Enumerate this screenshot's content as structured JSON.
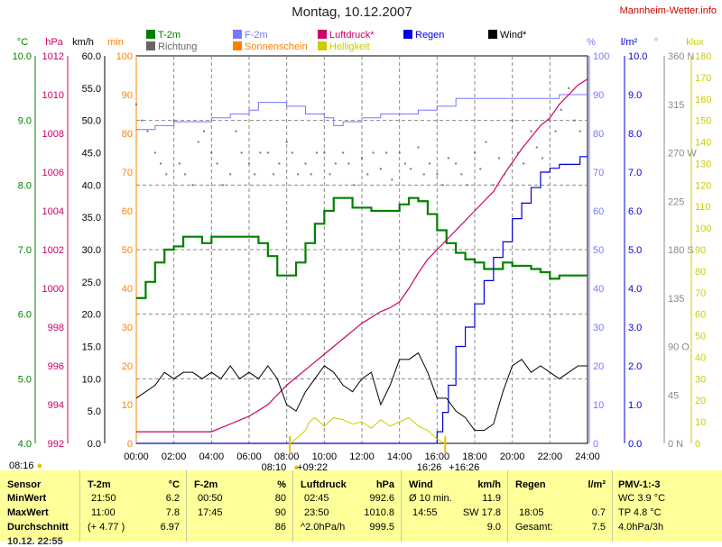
{
  "header": {
    "title": "Montag, 10.12.2007",
    "site": "Mannheim-Wetter.info"
  },
  "units": {
    "temp": "°C",
    "press": "hPa",
    "wind": "km/h",
    "sun": "min",
    "hum": "%",
    "rain": "l/m²",
    "dir": "°",
    "lux": "klux"
  },
  "legend": {
    "t2m": "T-2m",
    "richtung": "Richtung",
    "f2m": "F-2m",
    "sonnenschein": "Sonnenschein",
    "luftdruck": "Luftdruck*",
    "helligkeit": "Helligkeit",
    "regen": "Regen",
    "wind": "Wind*"
  },
  "colors": {
    "temp": "#008000",
    "press": "#cc0066",
    "humidity": "#7777ff",
    "rain": "#0000dd",
    "wind": "#000000",
    "sun": "#ff8000",
    "lux": "#cccc00",
    "richtung": "#777777",
    "panel": "#ffff99"
  },
  "events": {
    "sunrise": "08:16",
    "label_a": "08:10",
    "label_b": "09:22",
    "label_c": "16:26",
    "label_d": "16:26"
  },
  "chart_data": {
    "type": "line",
    "x_ticks": [
      "00:00",
      "02:00",
      "04:00",
      "06:00",
      "08:00",
      "10:00",
      "12:00",
      "14:00",
      "16:00",
      "18:00",
      "20:00",
      "22:00",
      "24:00"
    ],
    "axes": {
      "temp_c": {
        "range": [
          4.0,
          10.0
        ],
        "ticks": [
          "4.0",
          "5.0",
          "6.0",
          "7.0",
          "8.0",
          "9.0",
          "10.0"
        ]
      },
      "pressure_hpa": {
        "range": [
          992,
          1012
        ],
        "ticks": [
          "992",
          "994",
          "996",
          "998",
          "1000",
          "1002",
          "1004",
          "1006",
          "1008",
          "1010",
          "1012"
        ]
      },
      "wind_kmh": {
        "range": [
          0,
          60
        ],
        "ticks": [
          "0.0",
          "5.0",
          "10.0",
          "15.0",
          "20.0",
          "25.0",
          "30.0",
          "35.0",
          "40.0",
          "45.0",
          "50.0",
          "55.0",
          "60.0"
        ]
      },
      "sun_min": {
        "range": [
          0,
          100
        ],
        "ticks": [
          "0",
          "10",
          "20",
          "30",
          "40",
          "50",
          "60",
          "70",
          "80",
          "90",
          "100"
        ]
      },
      "humidity_pct": {
        "range": [
          0,
          100
        ],
        "ticks": [
          "0",
          "10",
          "20",
          "30",
          "40",
          "50",
          "60",
          "70",
          "80",
          "90",
          "100"
        ]
      },
      "rain_lm2": {
        "range": [
          0,
          10
        ],
        "ticks": [
          "0.0",
          "1.0",
          "2.0",
          "3.0",
          "4.0",
          "5.0",
          "6.0",
          "7.0",
          "8.0",
          "9.0",
          "10.0"
        ]
      },
      "direction": {
        "range": [
          0,
          360
        ],
        "ticks": [
          "0 N",
          "45",
          "90 O",
          "135",
          "180 S",
          "225",
          "270 W",
          "315",
          "360 N"
        ]
      },
      "lux_klux": {
        "range": [
          0,
          180
        ],
        "ticks": [
          "0",
          "10",
          "20",
          "30",
          "40",
          "50",
          "60",
          "70",
          "80",
          "90",
          "100",
          "110",
          "120",
          "130",
          "140",
          "150",
          "160",
          "170",
          "180"
        ]
      }
    },
    "series": [
      {
        "name": "T-2m",
        "unit": "°C",
        "x": [
          0,
          0.5,
          1,
          1.5,
          2,
          2.5,
          3,
          3.5,
          4,
          4.5,
          5,
          5.5,
          6,
          6.5,
          7,
          7.5,
          8,
          8.5,
          9,
          9.5,
          10,
          10.5,
          11,
          11.5,
          12,
          12.5,
          13,
          13.5,
          14,
          14.5,
          15,
          15.5,
          16,
          16.5,
          17,
          17.5,
          18,
          18.5,
          19,
          19.5,
          20,
          20.5,
          21,
          21.5,
          22,
          22.5,
          23,
          23.5,
          24
        ],
        "values": [
          6.25,
          6.5,
          6.8,
          7.0,
          7.05,
          7.2,
          7.2,
          7.1,
          7.2,
          7.2,
          7.2,
          7.2,
          7.2,
          7.1,
          6.9,
          6.6,
          6.6,
          6.8,
          7.1,
          7.4,
          7.6,
          7.8,
          7.8,
          7.65,
          7.65,
          7.6,
          7.6,
          7.6,
          7.7,
          7.8,
          7.75,
          7.55,
          7.3,
          7.1,
          6.95,
          6.85,
          6.8,
          6.7,
          6.7,
          6.8,
          6.75,
          6.75,
          6.7,
          6.65,
          6.55,
          6.6,
          6.6,
          6.6,
          6.6
        ]
      },
      {
        "name": "F-2m",
        "unit": "%",
        "x": [
          0,
          1,
          2,
          3,
          4,
          5,
          6,
          6.5,
          7,
          7.5,
          8,
          9,
          10,
          10.5,
          11,
          12,
          13,
          14,
          15,
          16,
          17,
          18,
          19,
          20,
          21,
          22,
          22.5,
          23,
          24
        ],
        "values": [
          81,
          82,
          83,
          83,
          84,
          85,
          86,
          88,
          88,
          88,
          87,
          85,
          84,
          82,
          83,
          84,
          85,
          85,
          86,
          87,
          89,
          89,
          89,
          89,
          89,
          89,
          90,
          90,
          90
        ]
      },
      {
        "name": "Luftdruck*",
        "unit": "hPa",
        "x": [
          0,
          2,
          4,
          4.5,
          5,
          5.5,
          6,
          6.5,
          7,
          7.5,
          8,
          8.5,
          9,
          9.5,
          10,
          10.5,
          11,
          11.5,
          12,
          12.5,
          13,
          13.5,
          14,
          14.5,
          15,
          15.5,
          16,
          16.5,
          17,
          17.5,
          18,
          18.5,
          19,
          19.5,
          20,
          20.5,
          21,
          21.5,
          22,
          22.5,
          23,
          23.5,
          24
        ],
        "values": [
          992.6,
          992.6,
          992.6,
          992.8,
          993.0,
          993.2,
          993.4,
          993.7,
          994.0,
          994.5,
          995.0,
          995.4,
          995.8,
          996.2,
          996.6,
          997.0,
          997.4,
          997.8,
          998.2,
          998.5,
          998.8,
          999.0,
          999.3,
          1000.0,
          1000.8,
          1001.5,
          1002.0,
          1002.5,
          1003.0,
          1003.5,
          1004.0,
          1004.5,
          1005.0,
          1005.8,
          1006.5,
          1007.2,
          1007.8,
          1008.4,
          1008.8,
          1009.5,
          1010.0,
          1010.5,
          1010.8
        ]
      },
      {
        "name": "Regen",
        "unit": "l/m²",
        "x": [
          0,
          15.5,
          16,
          16.3,
          16.6,
          17,
          17.5,
          18,
          18.5,
          19,
          19.5,
          20,
          20.5,
          21,
          21.5,
          22,
          22.5,
          23,
          23.3,
          23.6,
          24
        ],
        "values": [
          0.0,
          0.0,
          0.3,
          0.8,
          1.5,
          2.5,
          3.0,
          3.6,
          4.2,
          4.8,
          5.2,
          5.8,
          6.2,
          6.6,
          7.0,
          7.1,
          7.2,
          7.2,
          7.2,
          7.4,
          7.5
        ]
      },
      {
        "name": "Wind*",
        "unit": "km/h",
        "x": [
          0,
          0.5,
          1,
          1.5,
          2,
          2.5,
          3,
          3.5,
          4,
          4.5,
          5,
          5.5,
          6,
          6.5,
          7,
          7.5,
          8,
          8.5,
          9,
          9.5,
          10,
          10.5,
          11,
          11.5,
          12,
          12.5,
          13,
          13.5,
          14,
          14.5,
          15,
          15.5,
          16,
          16.5,
          17,
          17.5,
          18,
          18.5,
          19,
          19.5,
          20,
          20.5,
          21,
          21.5,
          22,
          22.5,
          23,
          23.5,
          24
        ],
        "values": [
          7.0,
          8.0,
          9.0,
          11.0,
          10.0,
          11.0,
          11.0,
          10.0,
          11.0,
          10.0,
          12.0,
          10.0,
          11.0,
          10.0,
          12.0,
          10.0,
          6.0,
          5.0,
          8.0,
          10.0,
          12.0,
          11.0,
          9.0,
          8.0,
          10.0,
          11.0,
          6.0,
          9.0,
          13.0,
          13.0,
          14.0,
          11.0,
          7.0,
          7.0,
          5.0,
          4.0,
          2.0,
          2.0,
          3.0,
          8.0,
          12.0,
          13.0,
          11.0,
          12.0,
          11.0,
          10.0,
          11.0,
          12.0,
          12.0
        ]
      },
      {
        "name": "Helligkeit",
        "unit": "klux",
        "x": [
          8.2,
          8.6,
          9,
          9.2,
          9.5,
          10,
          10.5,
          11,
          11.5,
          12,
          12.5,
          13,
          13.5,
          14,
          14.5,
          15,
          15.5,
          16,
          16.4
        ],
        "values": [
          0,
          3,
          6,
          10,
          12,
          8,
          12,
          11,
          9,
          10,
          7,
          11,
          8,
          10,
          12,
          8,
          6,
          2,
          0
        ]
      },
      {
        "name": "Sonnenschein",
        "unit": "min",
        "x": [],
        "values": []
      },
      {
        "name": "Richtung",
        "unit": "°",
        "x": [
          0,
          0.3,
          0.6,
          1,
          1.3,
          1.6,
          2,
          2.3,
          2.6,
          3,
          3.3,
          3.6,
          4,
          4.3,
          4.6,
          5,
          5.3,
          5.6,
          6,
          6.3,
          6.6,
          7,
          7.3,
          7.6,
          8,
          8.3,
          8.6,
          9,
          9.3,
          9.6,
          10,
          10.3,
          10.6,
          11,
          11.3,
          11.6,
          12,
          12.3,
          12.6,
          13,
          13.3,
          13.6,
          14,
          14.3,
          14.6,
          15,
          15.3,
          15.6,
          16,
          16.3,
          16.6,
          17,
          17.3,
          17.6,
          18,
          18.3,
          18.6,
          19,
          19.3,
          19.6,
          20,
          20.3,
          20.6,
          21,
          21.3,
          21.6,
          22,
          22.3,
          22.6,
          23,
          23.3,
          23.6
        ],
        "values": [
          315,
          300,
          290,
          270,
          260,
          250,
          300,
          260,
          250,
          240,
          280,
          290,
          270,
          260,
          240,
          250,
          290,
          270,
          260,
          250,
          270,
          270,
          250,
          260,
          280,
          270,
          250,
          260,
          250,
          270,
          270,
          250,
          260,
          270,
          260,
          240,
          265,
          250,
          270,
          255,
          270,
          245,
          270,
          260,
          255,
          275,
          250,
          260,
          250,
          240,
          265,
          260,
          250,
          240,
          270,
          255,
          280,
          240,
          265,
          250,
          300,
          270,
          260,
          290,
          275,
          265,
          300,
          290,
          310,
          330,
          300,
          290
        ]
      }
    ]
  },
  "stats": {
    "sensor": {
      "header": "Sensor",
      "minwert": "MinWert",
      "maxwert": "MaxWert",
      "durchschnitt": "Durchschnitt",
      "extra": "10.12. 22:55"
    },
    "t2m": {
      "header": "T-2m",
      "unit": "°C",
      "min_time": "21:50",
      "min_val": "6.2",
      "max_time": "11:00",
      "max_val": "7.8",
      "avg_extra": "(+ 4.77 )",
      "avg_val": "6.97"
    },
    "f2m": {
      "header": "F-2m",
      "unit": "%",
      "min_time": "00:50",
      "min_val": "80",
      "max_time": "17:45",
      "max_val": "90",
      "avg_val": "86"
    },
    "luftdruck": {
      "header": "Luftdruck",
      "unit": "hPa",
      "min_time": "02:45",
      "min_val": "992.6",
      "max_time": "23:50",
      "max_val": "1010.8",
      "avg_extra": "^2.0hPa/h",
      "avg_val": "999.5"
    },
    "wind": {
      "header": "Wind",
      "unit": "km/h",
      "r1_label": "Ø 10 min.",
      "r1_val": "11.9",
      "r2_time": "14:55",
      "r2_val": "SW 17.8",
      "r3_val": "9.0"
    },
    "regen": {
      "header": "Regen",
      "unit": "l/m²",
      "r2_time": "18:05",
      "r2_val": "0.7",
      "r3_label": "Gesamt:",
      "r3_val": "7.5"
    },
    "pmv": {
      "header": "PMV-1:-3",
      "r1": "WC 3.9 °C",
      "r2": "TP 4.8 °C",
      "r3": "4.0hPa/3h"
    }
  }
}
